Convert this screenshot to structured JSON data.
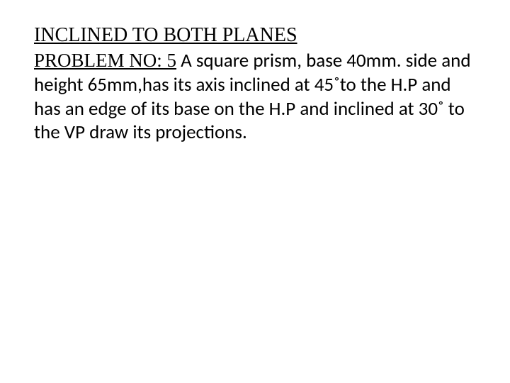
{
  "slide": {
    "heading": "INCLINED TO BOTH PLANES",
    "problem_label": "PROBLEM NO: 5",
    "problem_text_1": " A square prism, base 40mm. side and height 65mm,has its axis inclined at 45˚to the H.P and has an edge of its base on the H.P and inclined at 30˚ to the VP  draw its projections."
  },
  "colors": {
    "background": "#ffffff",
    "text": "#000000"
  },
  "typography": {
    "heading_font": "Times New Roman",
    "body_font": "Calibri",
    "heading_size_pt": 21,
    "body_size_pt": 20
  }
}
